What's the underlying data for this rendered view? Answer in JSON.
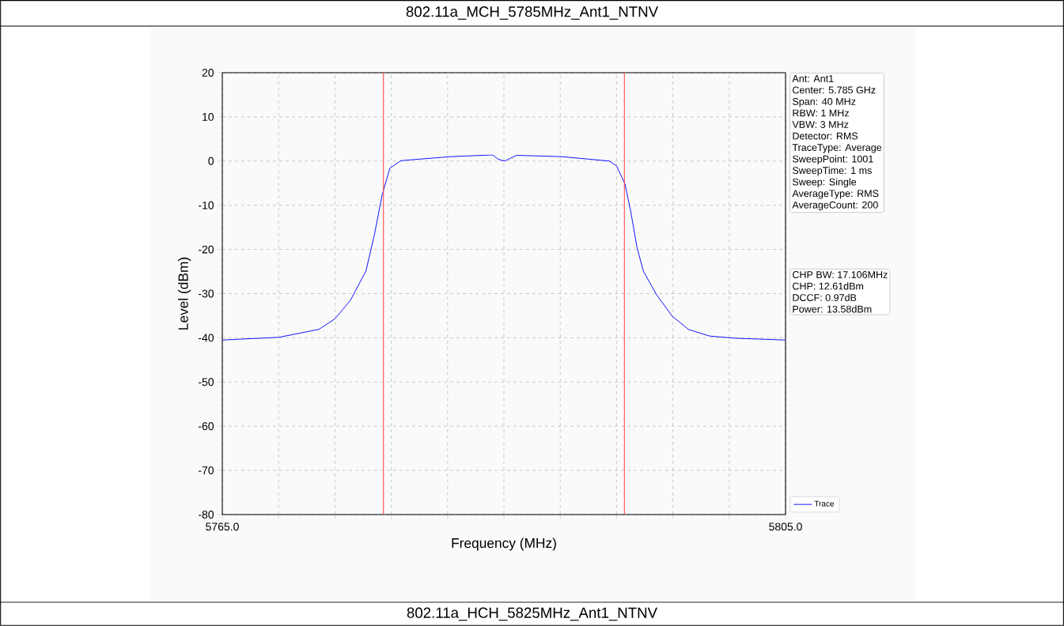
{
  "chart_data": {
    "type": "line",
    "title": "802.11a_MCH_5785MHz_Ant1_NTNV",
    "xlabel": "Frequency (MHz)",
    "ylabel": "Level (dBm)",
    "x": [
      5765.0,
      5769.0,
      5771.85,
      5773.0,
      5774.1,
      5775.2,
      5775.8,
      5776.35,
      5776.9,
      5777.7,
      5781.2,
      5784.2,
      5784.6,
      5785.05,
      5785.9,
      5789.1,
      5792.5,
      5793.0,
      5793.6,
      5794.0,
      5794.45,
      5794.9,
      5795.85,
      5796.95,
      5798.1,
      5799.6,
      5801.45,
      5804.95
    ],
    "series": [
      {
        "name": "Trace",
        "color": "#0000ff",
        "values": [
          -40.5,
          -39.9,
          -38.1,
          -35.7,
          -31.5,
          -24.9,
          -16.7,
          -7.7,
          -1.6,
          0.1,
          1.0,
          1.4,
          0.4,
          0.0,
          1.3,
          1.0,
          0.0,
          -1.1,
          -5.2,
          -11.3,
          -19.5,
          -24.9,
          -30.3,
          -35.1,
          -38.1,
          -39.6,
          -40.1,
          -40.5
        ]
      }
    ],
    "xlim": [
      5765,
      5805
    ],
    "xticks": [
      {
        "value": 5765,
        "label": "5765.0"
      },
      {
        "value": 5769,
        "label": null
      },
      {
        "value": 5773,
        "label": null
      },
      {
        "value": 5777,
        "label": null
      },
      {
        "value": 5781,
        "label": null
      },
      {
        "value": 5785,
        "label": null
      },
      {
        "value": 5789,
        "label": null
      },
      {
        "value": 5793,
        "label": null
      },
      {
        "value": 5797,
        "label": null
      },
      {
        "value": 5801,
        "label": null
      },
      {
        "value": 5805,
        "label": "5805.0"
      }
    ],
    "ylim": [
      -80,
      20
    ],
    "yticks": [
      -80,
      -70,
      -60,
      -50,
      -40,
      -30,
      -20,
      -10,
      0,
      10,
      20
    ],
    "ref_lines": [
      {
        "axis": "x",
        "value": 5776.447,
        "color": "#ff4d4d"
      },
      {
        "axis": "x",
        "value": 5793.553,
        "color": "#ff4d4d"
      }
    ],
    "annotations": [
      "Ant: Ant1",
      "Center: 5.785 GHz",
      "Span: 40 MHz",
      "RBW: 1 MHz",
      "VBW: 3 MHz",
      "Detector: RMS",
      "TraceType: Average",
      "SweepPoint: 1001",
      "SweepTime: 1 ms",
      "Sweep: Single",
      "AverageType: RMS",
      "AverageCount: 200",
      "CHP BW: 17.106MHz",
      "CHP: 12.61dBm",
      "DCCF: 0.97dB",
      "Power: 13.58dBm",
      "802.11a_HCH_5825MHz_Ant1_NTNV"
    ],
    "grid": true,
    "legend": "bottom right",
    "line_style": "solid",
    "marker": "none"
  }
}
